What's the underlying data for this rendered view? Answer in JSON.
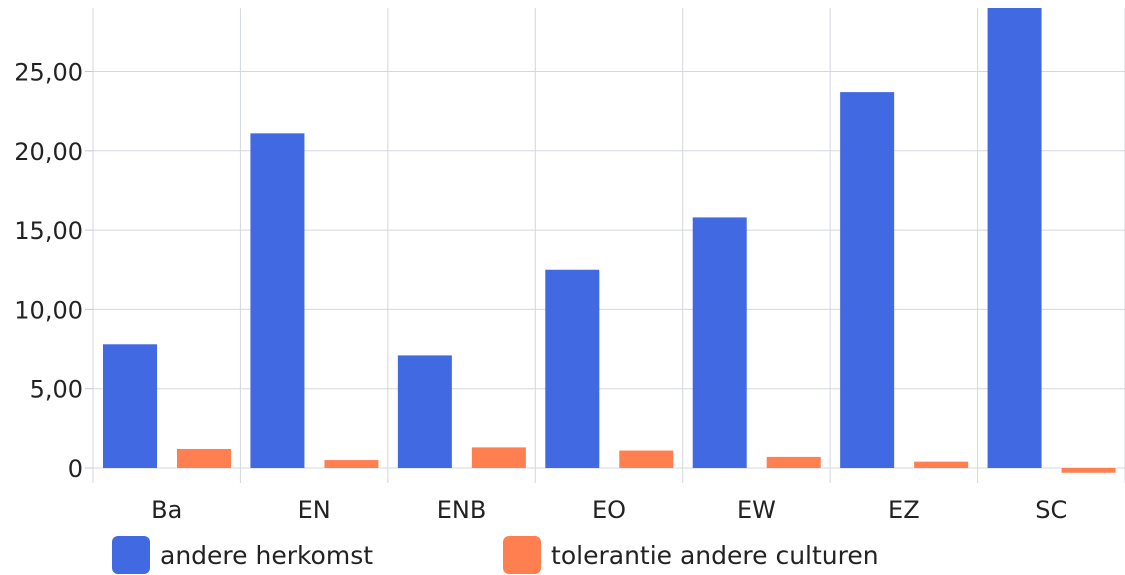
{
  "chart_data": {
    "type": "bar",
    "categories": [
      "Ba",
      "EN",
      "ENB",
      "EO",
      "EW",
      "EZ",
      "SC"
    ],
    "series": [
      {
        "name": "andere herkomst",
        "color": "#4169E1",
        "values": [
          7.8,
          21.1,
          7.1,
          12.5,
          15.8,
          23.7,
          29.5
        ]
      },
      {
        "name": "tolerantie andere culturen",
        "color": "#FF7F50",
        "values": [
          1.2,
          0.5,
          1.3,
          1.1,
          0.7,
          0.4,
          -0.3
        ]
      }
    ],
    "yticks": [
      0,
      5,
      10,
      15,
      20,
      25
    ],
    "ytick_labels": [
      "0",
      "5,00",
      "10,00",
      "15,00",
      "20,00",
      "25,00"
    ],
    "ylim": [
      -1,
      29
    ],
    "grid": true,
    "legend_position": "bottom-left",
    "title": "",
    "xlabel": "",
    "ylabel": ""
  }
}
